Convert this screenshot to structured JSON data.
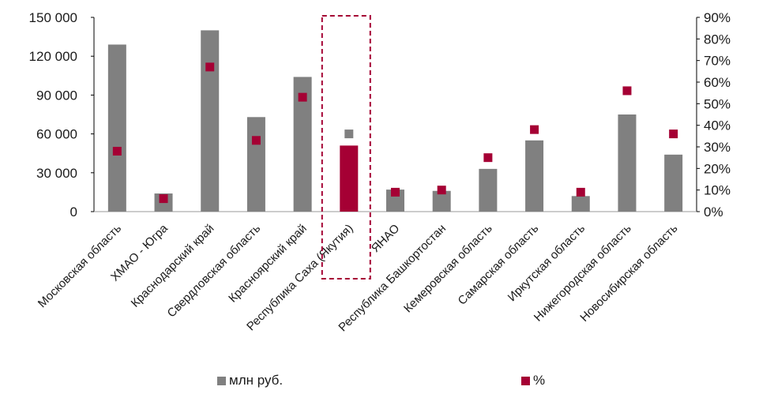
{
  "chart_data": {
    "type": "bar",
    "categories": [
      "Московская область",
      "ХМАО - Югра",
      "Краснодарский край",
      "Свердловская область",
      "Красноярский край",
      "Республика Саха (Якутия)",
      "ЯНАО",
      "Республика Башкортостан",
      "Кемеровская область",
      "Самарская область",
      "Иркутская область",
      "Нижегородская область",
      "Новосибирская область"
    ],
    "series": [
      {
        "name": "млн руб.",
        "type": "bar",
        "axis": "left",
        "values": [
          129000,
          14000,
          140000,
          73000,
          104000,
          51000,
          17000,
          16000,
          33000,
          55000,
          12000,
          75000,
          44000
        ]
      },
      {
        "name": "%",
        "type": "scatter",
        "axis": "right",
        "values": [
          28,
          6,
          67,
          33,
          53,
          36,
          9,
          10,
          25,
          38,
          9,
          56,
          36
        ]
      }
    ],
    "highlight_index": 5,
    "y_left": {
      "ylim": [
        0,
        150000
      ],
      "ticks": [
        "0",
        "30 000",
        "60 000",
        "90 000",
        "120 000",
        "150 000"
      ]
    },
    "y_right": {
      "ylim": [
        0,
        90
      ],
      "ticks": [
        "0%",
        "10%",
        "20%",
        "30%",
        "40%",
        "50%",
        "60%",
        "70%",
        "80%",
        "90%"
      ]
    },
    "grid": false,
    "legend_position": "bottom",
    "colors": {
      "bar": "#808080",
      "bar_highlight": "#a50034",
      "marker": "#a50034",
      "marker_highlight": "#808080",
      "highlight_box": "#a50034"
    }
  }
}
